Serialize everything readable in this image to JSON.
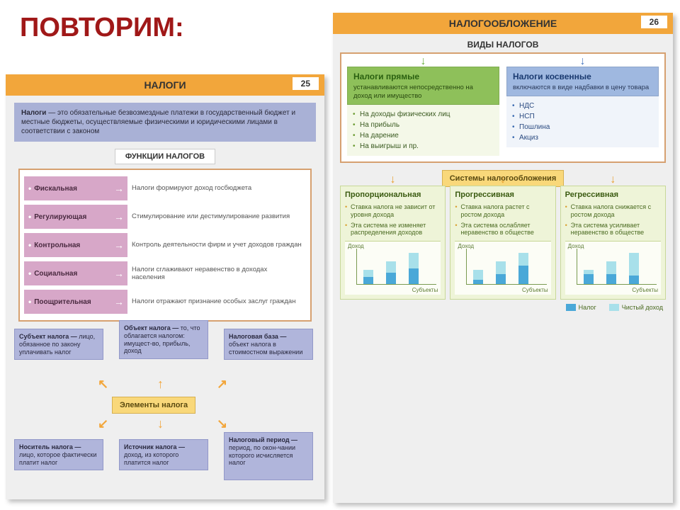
{
  "title": "ПОВТОРИМ:",
  "left": {
    "header": "НАЛОГИ",
    "page": "25",
    "intro_bold": "Налоги",
    "intro_rest": " — это обязательные безвозмездные платежи в государственный бюджет и местные бюджеты, осуществляемые физическими и юридическими лицами в соответствии с законом",
    "functions_title": "ФУНКЦИИ НАЛОГОВ",
    "functions": [
      {
        "name": "Фискальная",
        "desc": "Налоги формируют доход госбюджета"
      },
      {
        "name": "Регулирующая",
        "desc": "Стимулирование или дестимулирование развития"
      },
      {
        "name": "Контрольная",
        "desc": "Контроль деятельности фирм и учет доходов граждан"
      },
      {
        "name": "Социальная",
        "desc": "Налоги сглаживают неравенство в доходах населения"
      },
      {
        "name": "Поощрительная",
        "desc": "Налоги отражают признание особых заслуг граждан"
      }
    ],
    "elements_title": "Элементы налога",
    "elements": {
      "subject": {
        "b": "Субъект налога —",
        "t": "лицо, обязанное по закону уплачивать налог"
      },
      "object": {
        "b": "Объект налога —",
        "t": "то, что облагается налогом: имущест-во, прибыль, доход"
      },
      "base": {
        "b": "Налоговая база —",
        "t": "объект налога в стоимостном выражении"
      },
      "carrier": {
        "b": "Носитель налога —",
        "t": "лицо, которое фактически платит налог"
      },
      "source": {
        "b": "Источник налога —",
        "t": "доход, из которого платится налог"
      },
      "period": {
        "b": "Налоговый период —",
        "t": "период, по окон-чании которого исчисляется налог"
      }
    }
  },
  "right": {
    "header": "НАЛОГООБЛОЖЕНИЕ",
    "page": "26",
    "types_title": "ВИДЫ НАЛОГОВ",
    "direct": {
      "title": "Налоги прямые",
      "sub": "устанавливаются непосредственно на доход или имущество",
      "items": [
        "На доходы физических лиц",
        "На прибыль",
        "На дарение",
        "На выигрыш и пр."
      ]
    },
    "indirect": {
      "title": "Налоги косвенные",
      "sub": "включаются в виде надбавки в цену товара",
      "items": [
        "НДС",
        "НСП",
        "Пошлина",
        "Акциз"
      ]
    },
    "systems_title": "Системы налогообложения",
    "systems": [
      {
        "name": "Пропорциональная",
        "pts": [
          "Ставка налога не зависит от уровня дохода",
          "Эта система не изменяет распределения доходов"
        ],
        "bars": [
          {
            "tax": 10,
            "net": 10
          },
          {
            "tax": 16,
            "net": 16
          },
          {
            "tax": 22,
            "net": 22
          }
        ]
      },
      {
        "name": "Прогрессивная",
        "pts": [
          "Ставка налога растет с ростом дохода",
          "Эта система ослабляет неравенство в обществе"
        ],
        "bars": [
          {
            "tax": 6,
            "net": 14
          },
          {
            "tax": 14,
            "net": 18
          },
          {
            "tax": 26,
            "net": 18
          }
        ]
      },
      {
        "name": "Регрессивная",
        "pts": [
          "Ставка налога снижается с ростом дохода",
          "Эта система усиливает неравенство в обществе"
        ],
        "bars": [
          {
            "tax": 14,
            "net": 6
          },
          {
            "tax": 14,
            "net": 18
          },
          {
            "tax": 12,
            "net": 32
          }
        ]
      }
    ],
    "chart_labels": {
      "y": "Доход",
      "x": "Субъекты"
    },
    "legend": {
      "tax": "Налог",
      "net": "Чистый доход"
    },
    "colors": {
      "tax": "#4aa8d8",
      "net": "#a8e0ea"
    }
  }
}
